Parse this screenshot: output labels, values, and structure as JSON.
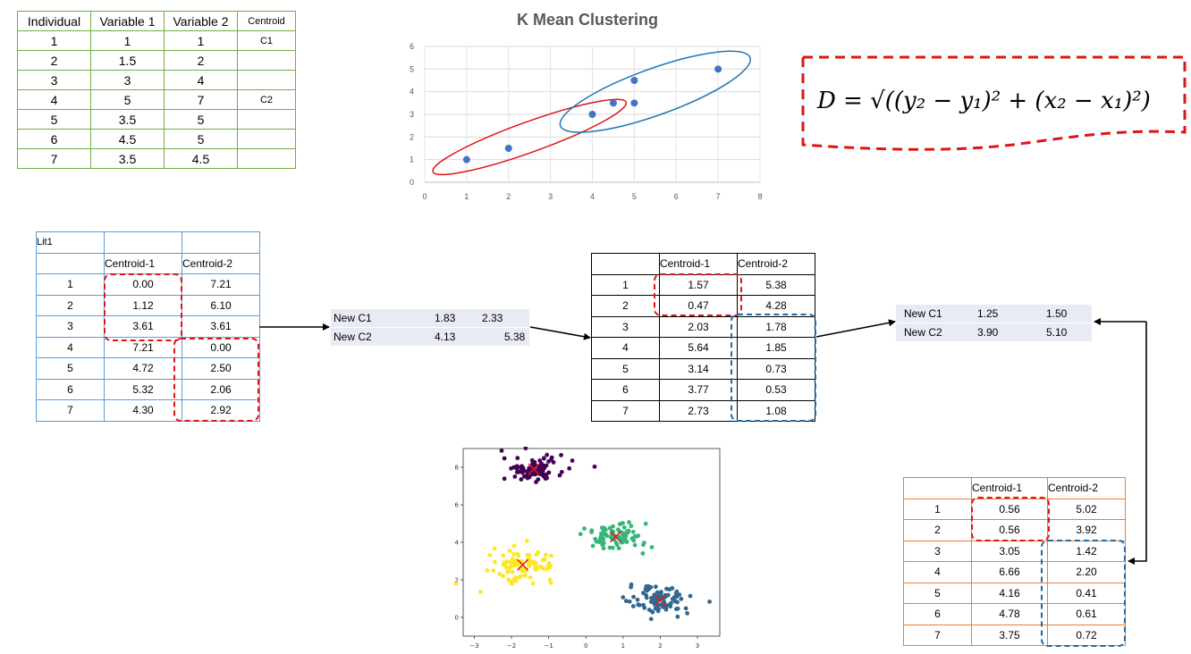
{
  "dataset_table": {
    "headers": [
      "Individual",
      "Variable 1",
      "Variable 2",
      "Centroid"
    ],
    "rows": [
      [
        "1",
        "1",
        "1",
        "C1"
      ],
      [
        "2",
        "1.5",
        "2",
        ""
      ],
      [
        "3",
        "3",
        "4",
        ""
      ],
      [
        "4",
        "5",
        "7",
        "C2"
      ],
      [
        "5",
        "3.5",
        "5",
        ""
      ],
      [
        "6",
        "4.5",
        "5",
        ""
      ],
      [
        "7",
        "3.5",
        "4.5",
        ""
      ]
    ]
  },
  "chart_data": [
    {
      "type": "scatter",
      "title": "K Mean Clustering",
      "x": [
        1,
        2,
        4,
        4.5,
        5,
        5,
        7
      ],
      "y": [
        1,
        1.5,
        3,
        3.5,
        3.5,
        4.5,
        5
      ],
      "xlim": [
        0,
        8
      ],
      "ylim": [
        0,
        6
      ],
      "xticks": [
        "0",
        "1",
        "2",
        "3",
        "4",
        "5",
        "6",
        "7",
        "8"
      ],
      "yticks": [
        "0",
        "1",
        "2",
        "3",
        "4",
        "5",
        "6"
      ],
      "grid": true,
      "point_color": "#4472c4",
      "cluster_colors": [
        "#e01414",
        "#1f77b4"
      ]
    },
    {
      "type": "scatter",
      "xticks": [
        "−3",
        "−2",
        "−1",
        "0",
        "1",
        "2",
        "3"
      ],
      "yticks": [
        "0",
        "2",
        "4",
        "6",
        "8"
      ],
      "xlim": [
        -3.3,
        3.6
      ],
      "ylim": [
        -1,
        9
      ],
      "clusters": [
        {
          "color": "#440154",
          "center": [
            -1.4,
            7.9
          ],
          "spread": [
            0.7,
            0.45
          ]
        },
        {
          "color": "#35b779",
          "center": [
            0.8,
            4.3
          ],
          "spread": [
            0.7,
            0.5
          ]
        },
        {
          "color": "#fde725",
          "center": [
            -1.7,
            2.8
          ],
          "spread": [
            0.7,
            0.55
          ]
        },
        {
          "color": "#31688e",
          "center": [
            2.0,
            0.9
          ],
          "spread": [
            0.7,
            0.5
          ]
        }
      ],
      "centroid_color": "#e41a1c"
    }
  ],
  "formula": {
    "text": "D = √((y₂ − y₁)² + (x₂ − x₁)²)"
  },
  "iteration1_table": {
    "title": "Lit1",
    "headers": [
      "",
      "Centroid-1",
      "Centroid-2"
    ],
    "rows": [
      [
        "1",
        "0.00",
        "7.21"
      ],
      [
        "2",
        "1.12",
        "6.10"
      ],
      [
        "3",
        "3.61",
        "3.61"
      ],
      [
        "4",
        "7.21",
        "0.00"
      ],
      [
        "5",
        "4.72",
        "2.50"
      ],
      [
        "6",
        "5.32",
        "2.06"
      ],
      [
        "7",
        "4.30",
        "2.92"
      ]
    ]
  },
  "new_centroids_1": [
    {
      "label": "New C1",
      "v1": "1.83",
      "v2": "2.33"
    },
    {
      "label": "New C2",
      "v1": "4.13",
      "v2": "5.38"
    }
  ],
  "iteration2_table": {
    "headers": [
      "",
      "Centroid-1",
      "Centroid-2"
    ],
    "rows": [
      [
        "1",
        "1.57",
        "5.38"
      ],
      [
        "2",
        "0.47",
        "4.28"
      ],
      [
        "3",
        "2.03",
        "1.78"
      ],
      [
        "4",
        "5.64",
        "1.85"
      ],
      [
        "5",
        "3.14",
        "0.73"
      ],
      [
        "6",
        "3.77",
        "0.53"
      ],
      [
        "7",
        "2.73",
        "1.08"
      ]
    ]
  },
  "new_centroids_2": [
    {
      "label": "New C1",
      "v1": "1.25",
      "v2": "1.50"
    },
    {
      "label": "New C2",
      "v1": "3.90",
      "v2": "5.10"
    }
  ],
  "iteration3_table": {
    "headers": [
      "",
      "Centroid-1",
      "Centroid-2"
    ],
    "rows": [
      [
        "1",
        "0.56",
        "5.02"
      ],
      [
        "2",
        "0.56",
        "3.92"
      ],
      [
        "3",
        "3.05",
        "1.42"
      ],
      [
        "4",
        "6.66",
        "2.20"
      ],
      [
        "5",
        "4.16",
        "0.41"
      ],
      [
        "6",
        "4.78",
        "0.61"
      ],
      [
        "7",
        "3.75",
        "0.72"
      ]
    ]
  }
}
